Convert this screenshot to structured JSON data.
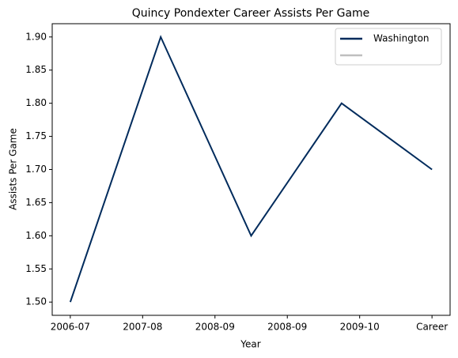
{
  "chart_data": {
    "type": "line",
    "title": "Quincy Pondexter Career Assists Per Game",
    "xlabel": "Year",
    "ylabel": "Assists Per Game",
    "x": [
      0,
      1,
      2,
      3,
      4
    ],
    "series": [
      {
        "name": "Washington",
        "color": "#002b5c",
        "values": [
          1.5,
          1.9,
          1.6,
          1.8,
          1.7
        ]
      }
    ],
    "xlim": [
      -0.2,
      4.2
    ],
    "xticks": [
      {
        "value": 0,
        "label": "2006-07"
      },
      {
        "value": 0.8,
        "label": "2007-08"
      },
      {
        "value": 1.6,
        "label": "2008-09"
      },
      {
        "value": 2.4,
        "label": "2008-09"
      },
      {
        "value": 3.2,
        "label": "2009-10"
      },
      {
        "value": 4,
        "label": "Career"
      }
    ],
    "ylim": [
      1.48,
      1.92
    ],
    "yticks": [
      {
        "value": 1.5,
        "label": "1.50"
      },
      {
        "value": 1.55,
        "label": "1.55"
      },
      {
        "value": 1.6,
        "label": "1.60"
      },
      {
        "value": 1.65,
        "label": "1.65"
      },
      {
        "value": 1.7,
        "label": "1.70"
      },
      {
        "value": 1.75,
        "label": "1.75"
      },
      {
        "value": 1.8,
        "label": "1.80"
      },
      {
        "value": 1.85,
        "label": "1.85"
      },
      {
        "value": 1.9,
        "label": "1.90"
      }
    ],
    "legend": "upper right"
  }
}
